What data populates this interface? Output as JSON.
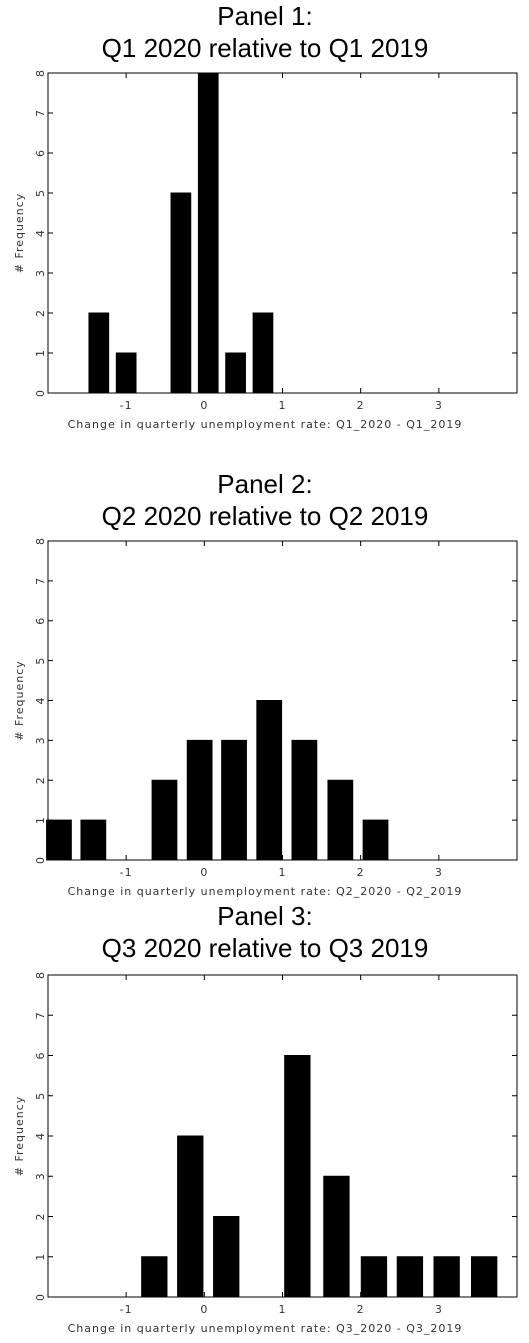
{
  "chart_data": [
    {
      "type": "bar",
      "title": "Panel 1:",
      "subtitle": "Q1 2020 relative to Q1 2019",
      "x": [
        -1.7,
        -1.35,
        -1.0,
        -0.65,
        -0.3,
        0.05,
        0.4,
        0.75
      ],
      "values": [
        0,
        2,
        1,
        0,
        5,
        8,
        1,
        2
      ],
      "color": "#000000",
      "xlim": [
        -2,
        4
      ],
      "xticks": [
        -1,
        0,
        1,
        2,
        3
      ],
      "ylim": [
        0,
        8
      ],
      "yticks": [
        0,
        1,
        2,
        3,
        4,
        5,
        6,
        7,
        8
      ],
      "xlabel": "Change in quarterly unemployment rate: Q1_2020 - Q1_2019",
      "ylabel": "# Frequency"
    },
    {
      "type": "bar",
      "title": "Panel 2:",
      "subtitle": "Q2 2020 relative to Q2 2019",
      "x": [
        -1.86,
        -1.42,
        -0.97,
        -0.51,
        -0.06,
        0.38,
        0.83,
        1.28,
        1.74,
        2.19
      ],
      "values": [
        1,
        1,
        0,
        2,
        3,
        3,
        4,
        3,
        2,
        1
      ],
      "color": "#000000",
      "xlim": [
        -2,
        4
      ],
      "xticks": [
        -1,
        0,
        1,
        2,
        3
      ],
      "ylim": [
        0,
        8
      ],
      "yticks": [
        0,
        1,
        2,
        3,
        4,
        5,
        6,
        7,
        8
      ],
      "xlabel": "Change in quarterly unemployment rate: Q2_2020 - Q2_2019",
      "ylabel": "# Frequency"
    },
    {
      "type": "bar",
      "title": "Panel 3:",
      "subtitle": "Q3 2020 relative to Q3 2019",
      "x": [
        -0.64,
        -0.18,
        0.28,
        0.74,
        1.19,
        1.69,
        2.17,
        2.63,
        3.1,
        3.58
      ],
      "values": [
        1,
        4,
        2,
        0,
        6,
        3,
        1,
        1,
        1,
        1
      ],
      "color": "#000000",
      "xlim": [
        -2,
        4
      ],
      "xticks": [
        -1,
        0,
        1,
        2,
        3
      ],
      "ylim": [
        0,
        8
      ],
      "yticks": [
        0,
        1,
        2,
        3,
        4,
        5,
        6,
        7,
        8
      ],
      "xlabel": "Change in quarterly unemployment rate: Q3_2020 - Q3_2019",
      "ylabel": "# Frequency"
    }
  ]
}
